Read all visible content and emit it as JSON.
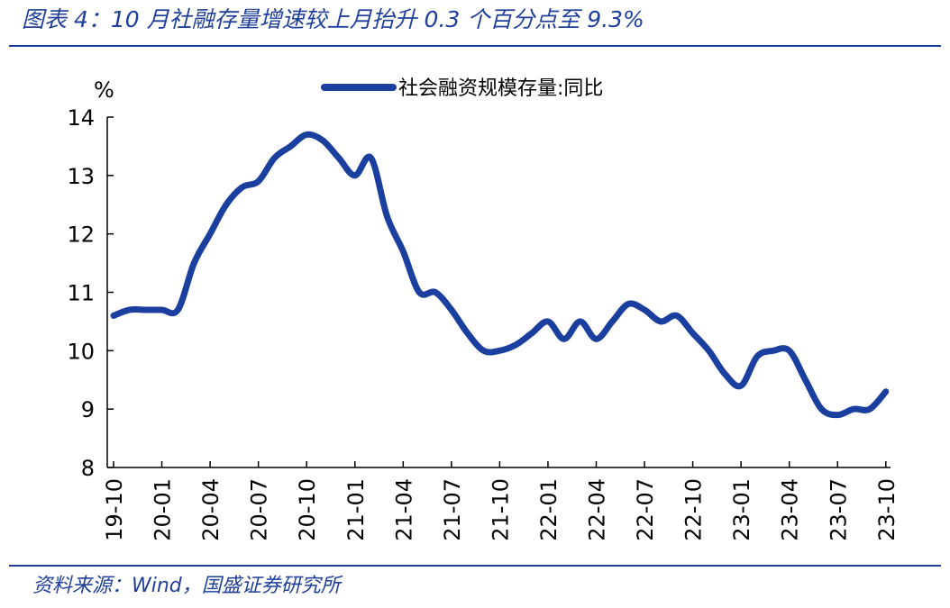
{
  "header": {
    "title": "图表 4：10 月社融存量增速较上月抬升 0.3 个百分点至 9.3%"
  },
  "footer": {
    "source": "资料来源：Wind，国盛证券研究所"
  },
  "colors": {
    "accent": "#1f3f9a",
    "series": "#1a3f9e"
  },
  "chart_data": {
    "type": "line",
    "title": "",
    "ylabel": "%",
    "xlabel": "",
    "ylim": [
      8,
      14
    ],
    "yticks": [
      8,
      9,
      10,
      11,
      12,
      13,
      14
    ],
    "grid": false,
    "legend_position": "top-center",
    "x_tick_labels": [
      "19-10",
      "20-01",
      "20-04",
      "20-07",
      "20-10",
      "21-01",
      "21-04",
      "21-07",
      "21-10",
      "22-01",
      "22-04",
      "22-07",
      "22-10",
      "23-01",
      "23-04",
      "23-07",
      "23-10"
    ],
    "x": [
      "19-10",
      "19-11",
      "19-12",
      "20-01",
      "20-02",
      "20-03",
      "20-04",
      "20-05",
      "20-06",
      "20-07",
      "20-08",
      "20-09",
      "20-10",
      "20-11",
      "20-12",
      "21-01",
      "21-02",
      "21-03",
      "21-04",
      "21-05",
      "21-06",
      "21-07",
      "21-08",
      "21-09",
      "21-10",
      "21-11",
      "21-12",
      "22-01",
      "22-02",
      "22-03",
      "22-04",
      "22-05",
      "22-06",
      "22-07",
      "22-08",
      "22-09",
      "22-10",
      "22-11",
      "22-12",
      "23-01",
      "23-02",
      "23-03",
      "23-04",
      "23-05",
      "23-06",
      "23-07",
      "23-08",
      "23-09",
      "23-10"
    ],
    "series": [
      {
        "name": "社会融资规模存量:同比",
        "values": [
          10.6,
          10.7,
          10.7,
          10.7,
          10.7,
          11.5,
          12.0,
          12.5,
          12.8,
          12.9,
          13.3,
          13.5,
          13.7,
          13.6,
          13.3,
          13.0,
          13.3,
          12.3,
          11.7,
          11.0,
          11.0,
          10.7,
          10.3,
          10.0,
          10.0,
          10.1,
          10.3,
          10.5,
          10.2,
          10.5,
          10.2,
          10.5,
          10.8,
          10.7,
          10.5,
          10.6,
          10.3,
          10.0,
          9.6,
          9.4,
          9.9,
          10.0,
          10.0,
          9.5,
          9.0,
          8.9,
          9.0,
          9.0,
          9.3
        ]
      }
    ]
  }
}
